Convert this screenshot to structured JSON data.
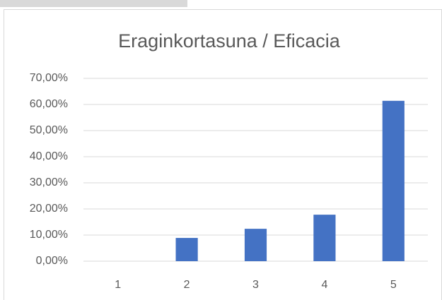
{
  "chart_data": {
    "type": "bar",
    "title": "Eraginkortasuna / Eficacia",
    "categories": [
      "1",
      "2",
      "3",
      "4",
      "5"
    ],
    "values": [
      0,
      8.9,
      12.4,
      17.8,
      61.4
    ],
    "color": "#4472c4",
    "ylim": [
      0,
      70
    ],
    "yticks": [
      {
        "value": 0,
        "label": "0,00%"
      },
      {
        "value": 10,
        "label": "10,00%"
      },
      {
        "value": 20,
        "label": "20,00%"
      },
      {
        "value": 30,
        "label": "30,00%"
      },
      {
        "value": 40,
        "label": "40,00%"
      },
      {
        "value": 50,
        "label": "50,00%"
      },
      {
        "value": 60,
        "label": "60,00%"
      },
      {
        "value": 70,
        "label": "70,00%"
      }
    ],
    "grid": true
  }
}
